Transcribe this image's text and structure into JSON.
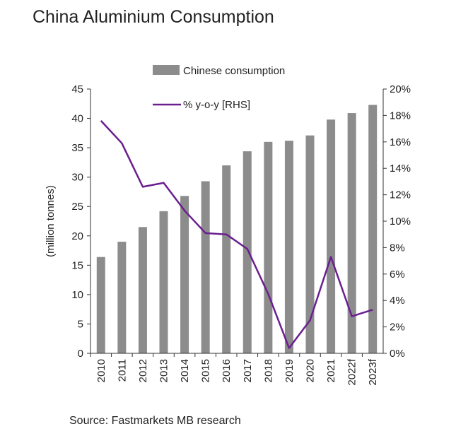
{
  "title": "China Aluminium Consumption",
  "source": "Source: Fastmarkets MB research",
  "colors": {
    "bar": "#8c8c8c",
    "line": "#6a1f8f",
    "axis": "#333333"
  },
  "chart_data": {
    "type": "bar",
    "title": "China Aluminium Consumption",
    "categories": [
      "2010",
      "2011",
      "2012",
      "2013",
      "2014",
      "2015",
      "2016",
      "2017",
      "2018",
      "2019",
      "2020",
      "2021",
      "2022f",
      "2023f"
    ],
    "series": [
      {
        "name": "Chinese consumption",
        "type": "bar",
        "axis": "left",
        "values": [
          16.4,
          19.0,
          21.5,
          24.2,
          26.8,
          29.3,
          32.0,
          34.4,
          36.0,
          36.2,
          37.1,
          39.8,
          40.9,
          42.3
        ]
      },
      {
        "name": "% y-o-y [RHS]",
        "type": "line",
        "axis": "right",
        "values": [
          17.6,
          15.9,
          12.6,
          12.9,
          10.8,
          9.1,
          9.0,
          7.9,
          4.5,
          0.4,
          2.5,
          7.3,
          2.8,
          3.3
        ]
      }
    ],
    "ylabel": "(million tonnes)",
    "ylim": [
      0,
      45
    ],
    "yticks": [
      "0",
      "5",
      "10",
      "15",
      "20",
      "25",
      "30",
      "35",
      "40",
      "45"
    ],
    "y2lim": [
      0,
      20
    ],
    "y2ticks": [
      "0%",
      "2%",
      "4%",
      "6%",
      "8%",
      "10%",
      "12%",
      "14%",
      "16%",
      "18%",
      "20%"
    ],
    "grid": false,
    "legend_position": "top"
  }
}
